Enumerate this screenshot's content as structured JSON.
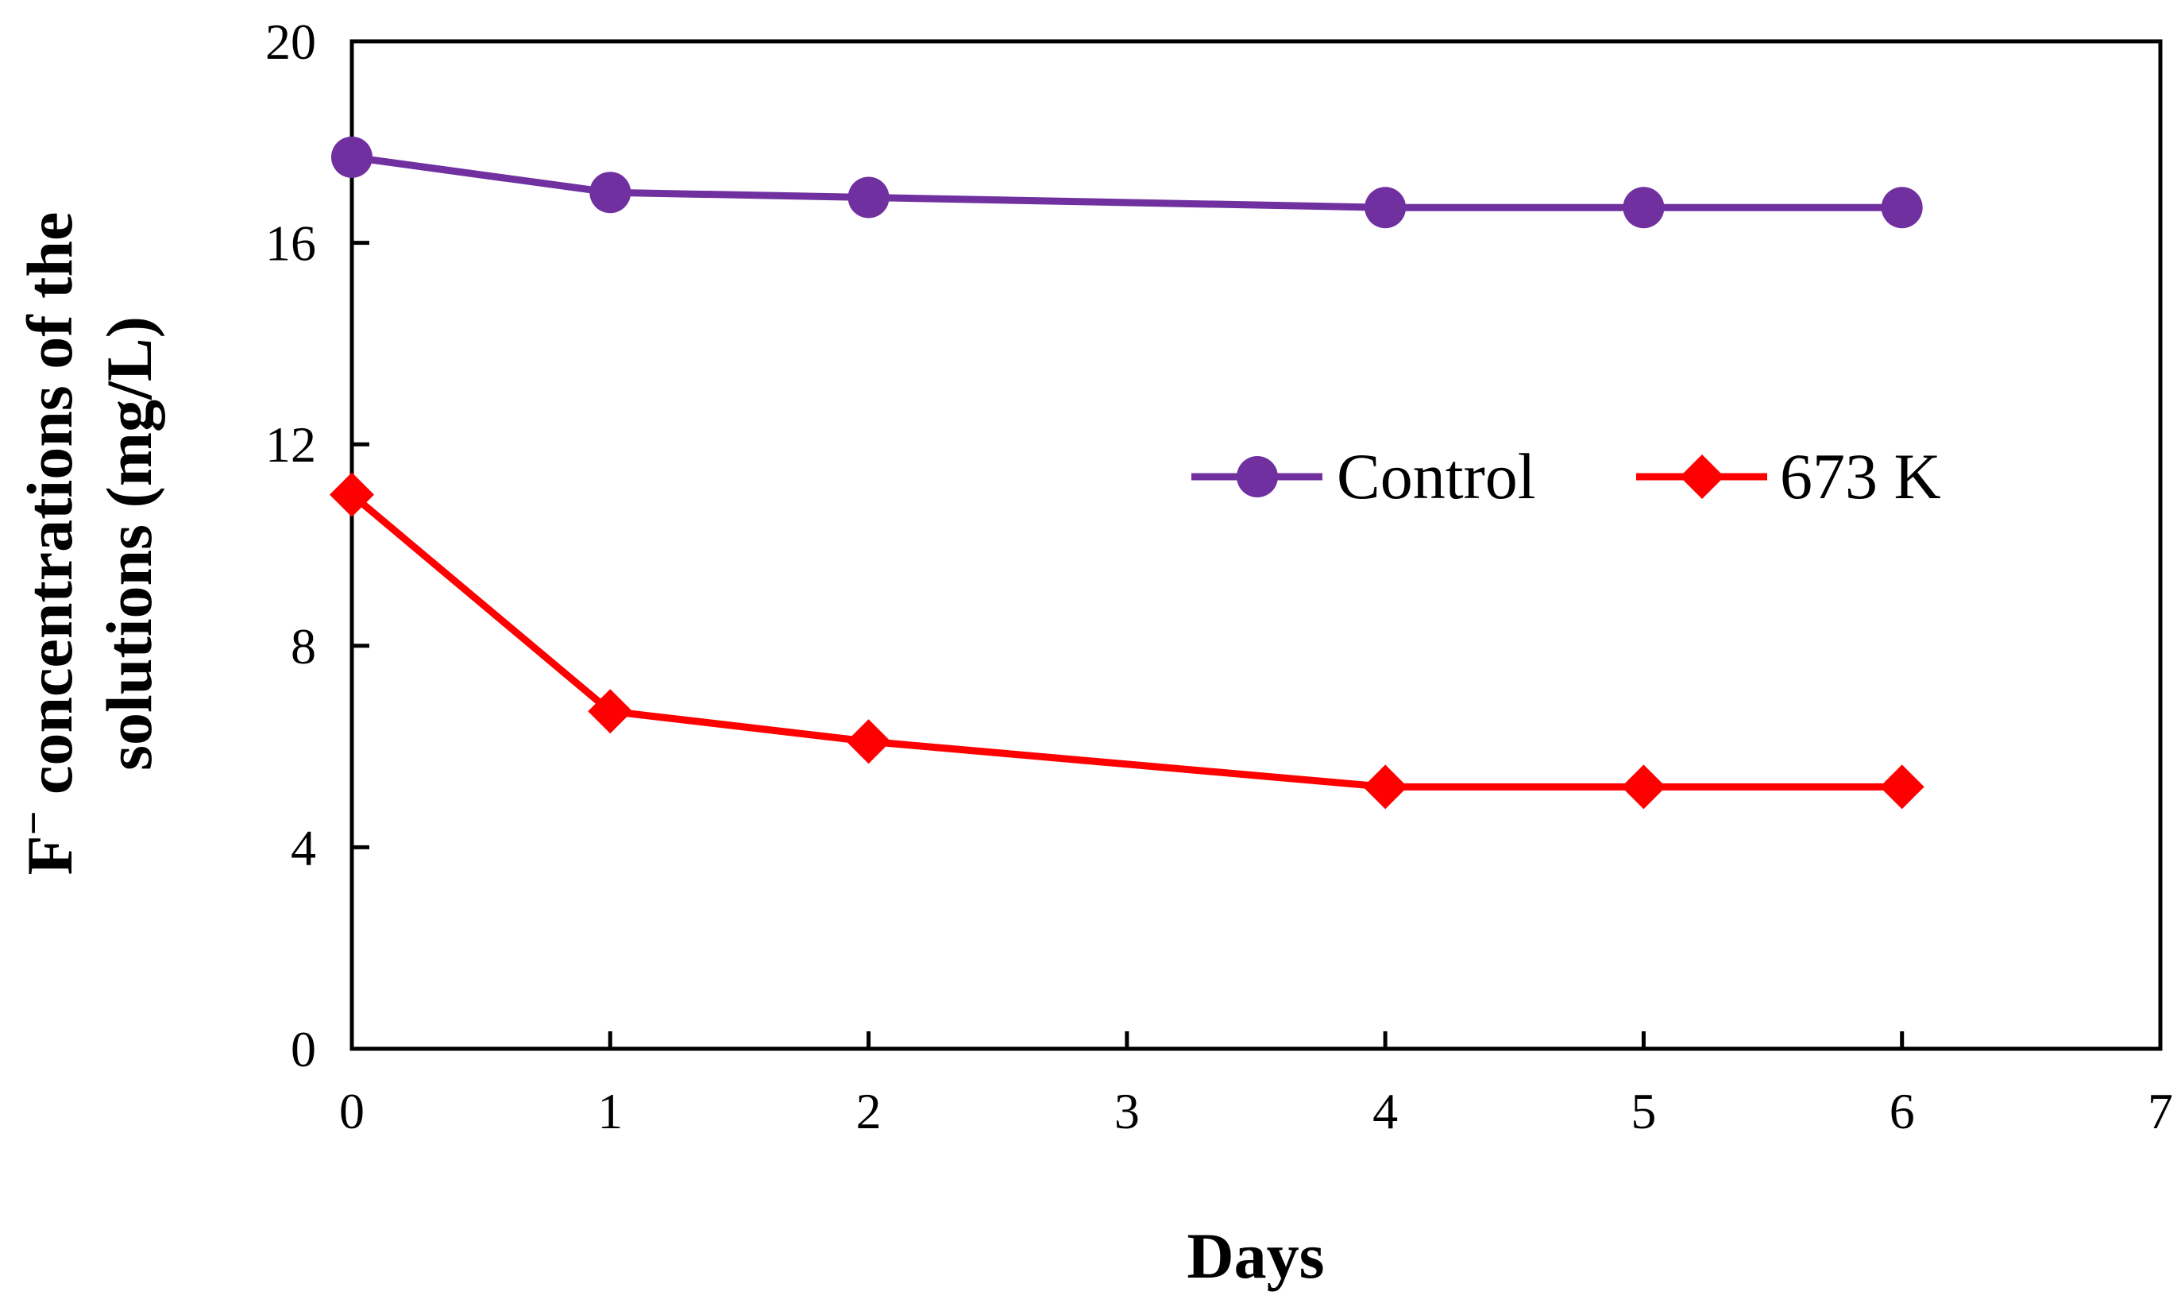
{
  "chart_data": {
    "type": "line",
    "title": "",
    "xlabel": "Days",
    "ylabel": {
      "line1_prefix": "F",
      "line1_superscript": "−",
      "line1_suffix": " concentrations of the",
      "line2": "solutions (mg/L)"
    },
    "xlim": [
      0,
      7
    ],
    "ylim": [
      0,
      20
    ],
    "xticks": [
      0,
      1,
      2,
      3,
      4,
      5,
      6,
      7
    ],
    "yticks": [
      0,
      4,
      8,
      12,
      16,
      20
    ],
    "grid": false,
    "legend_position": "center-right, horizontal",
    "series": [
      {
        "name": "Control",
        "color": "#7030A0",
        "marker": "circle",
        "x": [
          0,
          1,
          2,
          4,
          5,
          6
        ],
        "y": [
          17.7,
          17.0,
          16.9,
          16.7,
          16.7,
          16.7
        ]
      },
      {
        "name": "673 K",
        "color": "#FF0000",
        "marker": "diamond",
        "x": [
          0,
          1,
          2,
          4,
          5,
          6
        ],
        "y": [
          11.0,
          6.7,
          6.1,
          5.2,
          5.2,
          5.2
        ]
      }
    ]
  }
}
